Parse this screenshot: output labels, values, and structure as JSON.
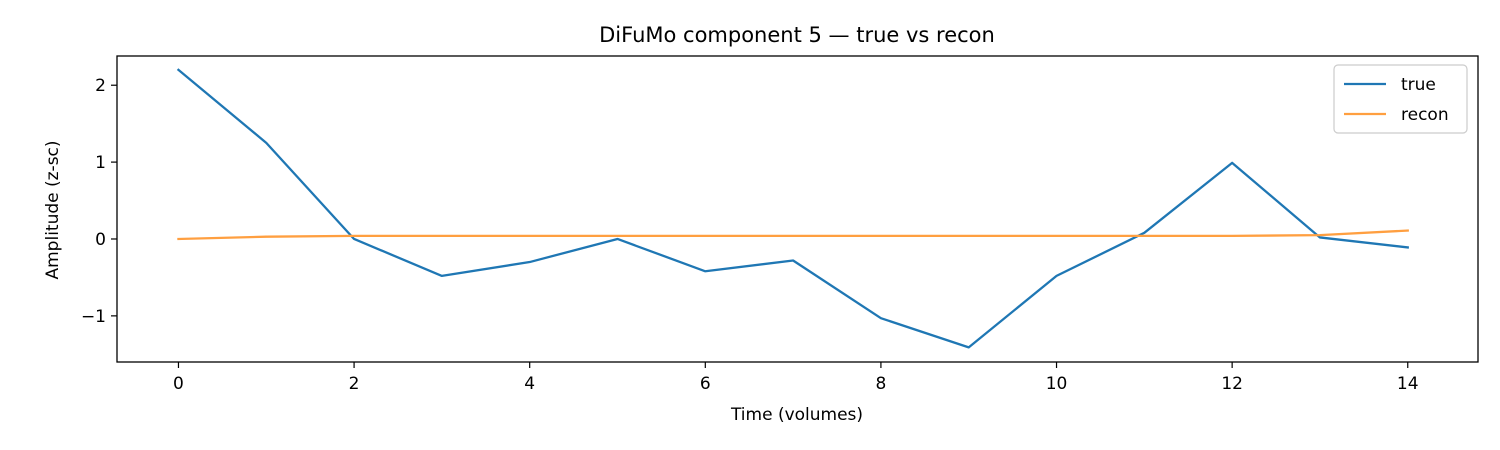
{
  "chart_data": {
    "type": "line",
    "title": "DiFuMo component 5 — true vs recon",
    "xlabel": "Time (volumes)",
    "ylabel": "Amplitude (z-sc)",
    "x": [
      0,
      1,
      2,
      3,
      4,
      5,
      6,
      7,
      8,
      9,
      10,
      11,
      12,
      13,
      14
    ],
    "xlim": [
      -0.7,
      14.8
    ],
    "ylim": [
      -1.6,
      2.38
    ],
    "xticks": [
      0,
      2,
      4,
      6,
      8,
      10,
      12,
      14
    ],
    "yticks": [
      -1,
      0,
      1,
      2
    ],
    "ytick_labels": [
      "−1",
      "0",
      "1",
      "2"
    ],
    "grid": false,
    "legend": "top-right",
    "series": [
      {
        "name": "true",
        "color": "#1f77b4",
        "values": [
          2.2,
          1.25,
          0.0,
          -0.48,
          -0.3,
          0.0,
          -0.42,
          -0.28,
          -1.03,
          -1.41,
          -0.48,
          0.08,
          0.99,
          0.02,
          -0.11
        ]
      },
      {
        "name": "recon",
        "color": "#ff9f40",
        "values": [
          0.0,
          0.03,
          0.04,
          0.04,
          0.04,
          0.04,
          0.04,
          0.04,
          0.04,
          0.04,
          0.04,
          0.04,
          0.04,
          0.05,
          0.11
        ]
      }
    ]
  }
}
